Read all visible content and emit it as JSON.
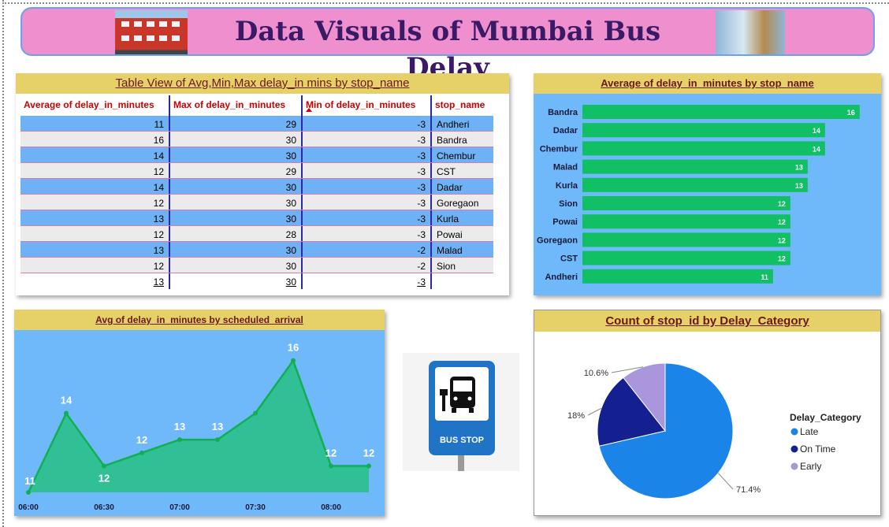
{
  "header": {
    "title": "Data Visuals of Mumbai Bus Delay"
  },
  "table": {
    "title": "Table View of Avg,Min,Max delay_in mins by stop_name",
    "columns": [
      "Average of delay_in_minutes",
      "Max of delay_in_minutes",
      "Min of delay_in_minutes",
      "stop_name"
    ],
    "rows": [
      [
        "11",
        "29",
        "-3",
        "Andheri"
      ],
      [
        "16",
        "30",
        "-3",
        "Bandra"
      ],
      [
        "14",
        "30",
        "-3",
        "Chembur"
      ],
      [
        "12",
        "29",
        "-3",
        "CST"
      ],
      [
        "14",
        "30",
        "-3",
        "Dadar"
      ],
      [
        "12",
        "30",
        "-3",
        "Goregaon"
      ],
      [
        "13",
        "30",
        "-3",
        "Kurla"
      ],
      [
        "12",
        "28",
        "-3",
        "Powai"
      ],
      [
        "13",
        "30",
        "-2",
        "Malad"
      ],
      [
        "12",
        "30",
        "-2",
        "Sion"
      ]
    ],
    "totals": [
      "13",
      "30",
      "-3",
      ""
    ]
  },
  "bus_stop_sign": {
    "label": "BUS STOP"
  },
  "chart_data": [
    {
      "type": "bar",
      "title": "Average of delay_in_minutes by stop_name",
      "orientation": "horizontal",
      "categories": [
        "Bandra",
        "Dadar",
        "Chembur",
        "Malad",
        "Kurla",
        "Sion",
        "Powai",
        "Goregaon",
        "CST",
        "Andheri"
      ],
      "values": [
        16,
        14,
        14,
        13,
        13,
        12,
        12,
        12,
        12,
        11
      ],
      "color": "#11c064",
      "background": "#6fb8f9",
      "xlim": [
        0,
        16.6
      ],
      "grid": false
    },
    {
      "type": "area",
      "title": "Avg of delay_in_minutes by scheduled_arrival",
      "x": [
        "06:00",
        "06:15",
        "06:30",
        "06:45",
        "07:00",
        "07:15",
        "07:30",
        "07:45",
        "08:00",
        "08:15"
      ],
      "xticks": [
        "06:00",
        "06:30",
        "07:00",
        "07:30",
        "08:00"
      ],
      "values": [
        11,
        14,
        12,
        12.5,
        13,
        13,
        14,
        16,
        12,
        12
      ],
      "point_labels": [
        "11",
        "14",
        "12",
        "12",
        "13",
        "13",
        "",
        "16",
        "12",
        "12"
      ],
      "color": "#2dbf8f",
      "background": "#6fb8f9",
      "ylim": [
        11,
        16.5
      ],
      "grid": false
    },
    {
      "type": "pie",
      "title": "Count of stop_id by Delay_Category",
      "legend_title": "Delay_Category",
      "legend_position": "right",
      "labels": [
        "Late",
        "On Time",
        "Early"
      ],
      "values": [
        71.4,
        18,
        10.6
      ],
      "value_labels": [
        "71.4%",
        "18%",
        "10.6%"
      ],
      "colors": [
        "#1b84e8",
        "#14208f",
        "#a996dc"
      ]
    }
  ]
}
